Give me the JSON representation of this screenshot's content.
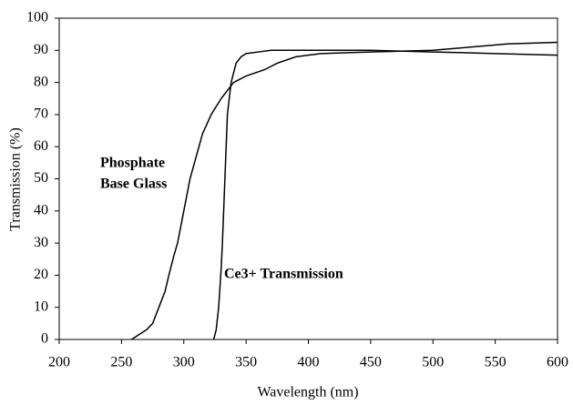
{
  "chart_data": {
    "type": "line",
    "x_label": "Wavelength (nm)",
    "y_label": "Transmission (%)",
    "annotations": [
      "Phosphate",
      "Base Glass",
      "Ce3+ Transmission"
    ],
    "xlim": [
      200,
      600
    ],
    "xticks": [
      200,
      250,
      300,
      350,
      400,
      450,
      500,
      550,
      600
    ],
    "ylim": [
      0,
      100
    ],
    "yticks": [
      0,
      10,
      20,
      30,
      40,
      50,
      60,
      70,
      80,
      90,
      100
    ],
    "grid": false,
    "series": [
      {
        "name": "Phosphate Base Glass",
        "color": "#000000",
        "x": [
          258,
          262,
          270,
          275,
          280,
          285,
          288,
          292,
          295,
          300,
          305,
          310,
          315,
          322,
          330,
          340,
          350,
          365,
          375,
          390,
          410,
          450,
          500,
          530,
          560,
          600
        ],
        "values": [
          0,
          1,
          3,
          5,
          10,
          15,
          20,
          26,
          30,
          40,
          50,
          57,
          64,
          70,
          75,
          80,
          82,
          84,
          86,
          88,
          89,
          89.5,
          90,
          91,
          92,
          92.5
        ]
      },
      {
        "name": "Ce3+ Transmission",
        "color": "#000000",
        "x": [
          324,
          326,
          328,
          330,
          331,
          333,
          335,
          338,
          342,
          346,
          350,
          360,
          370,
          400,
          450,
          500,
          550,
          600
        ],
        "values": [
          0,
          3,
          10,
          22,
          30,
          50,
          70,
          80,
          86,
          88,
          89,
          89.5,
          90,
          90,
          90,
          89.5,
          89,
          88.5
        ]
      }
    ]
  }
}
